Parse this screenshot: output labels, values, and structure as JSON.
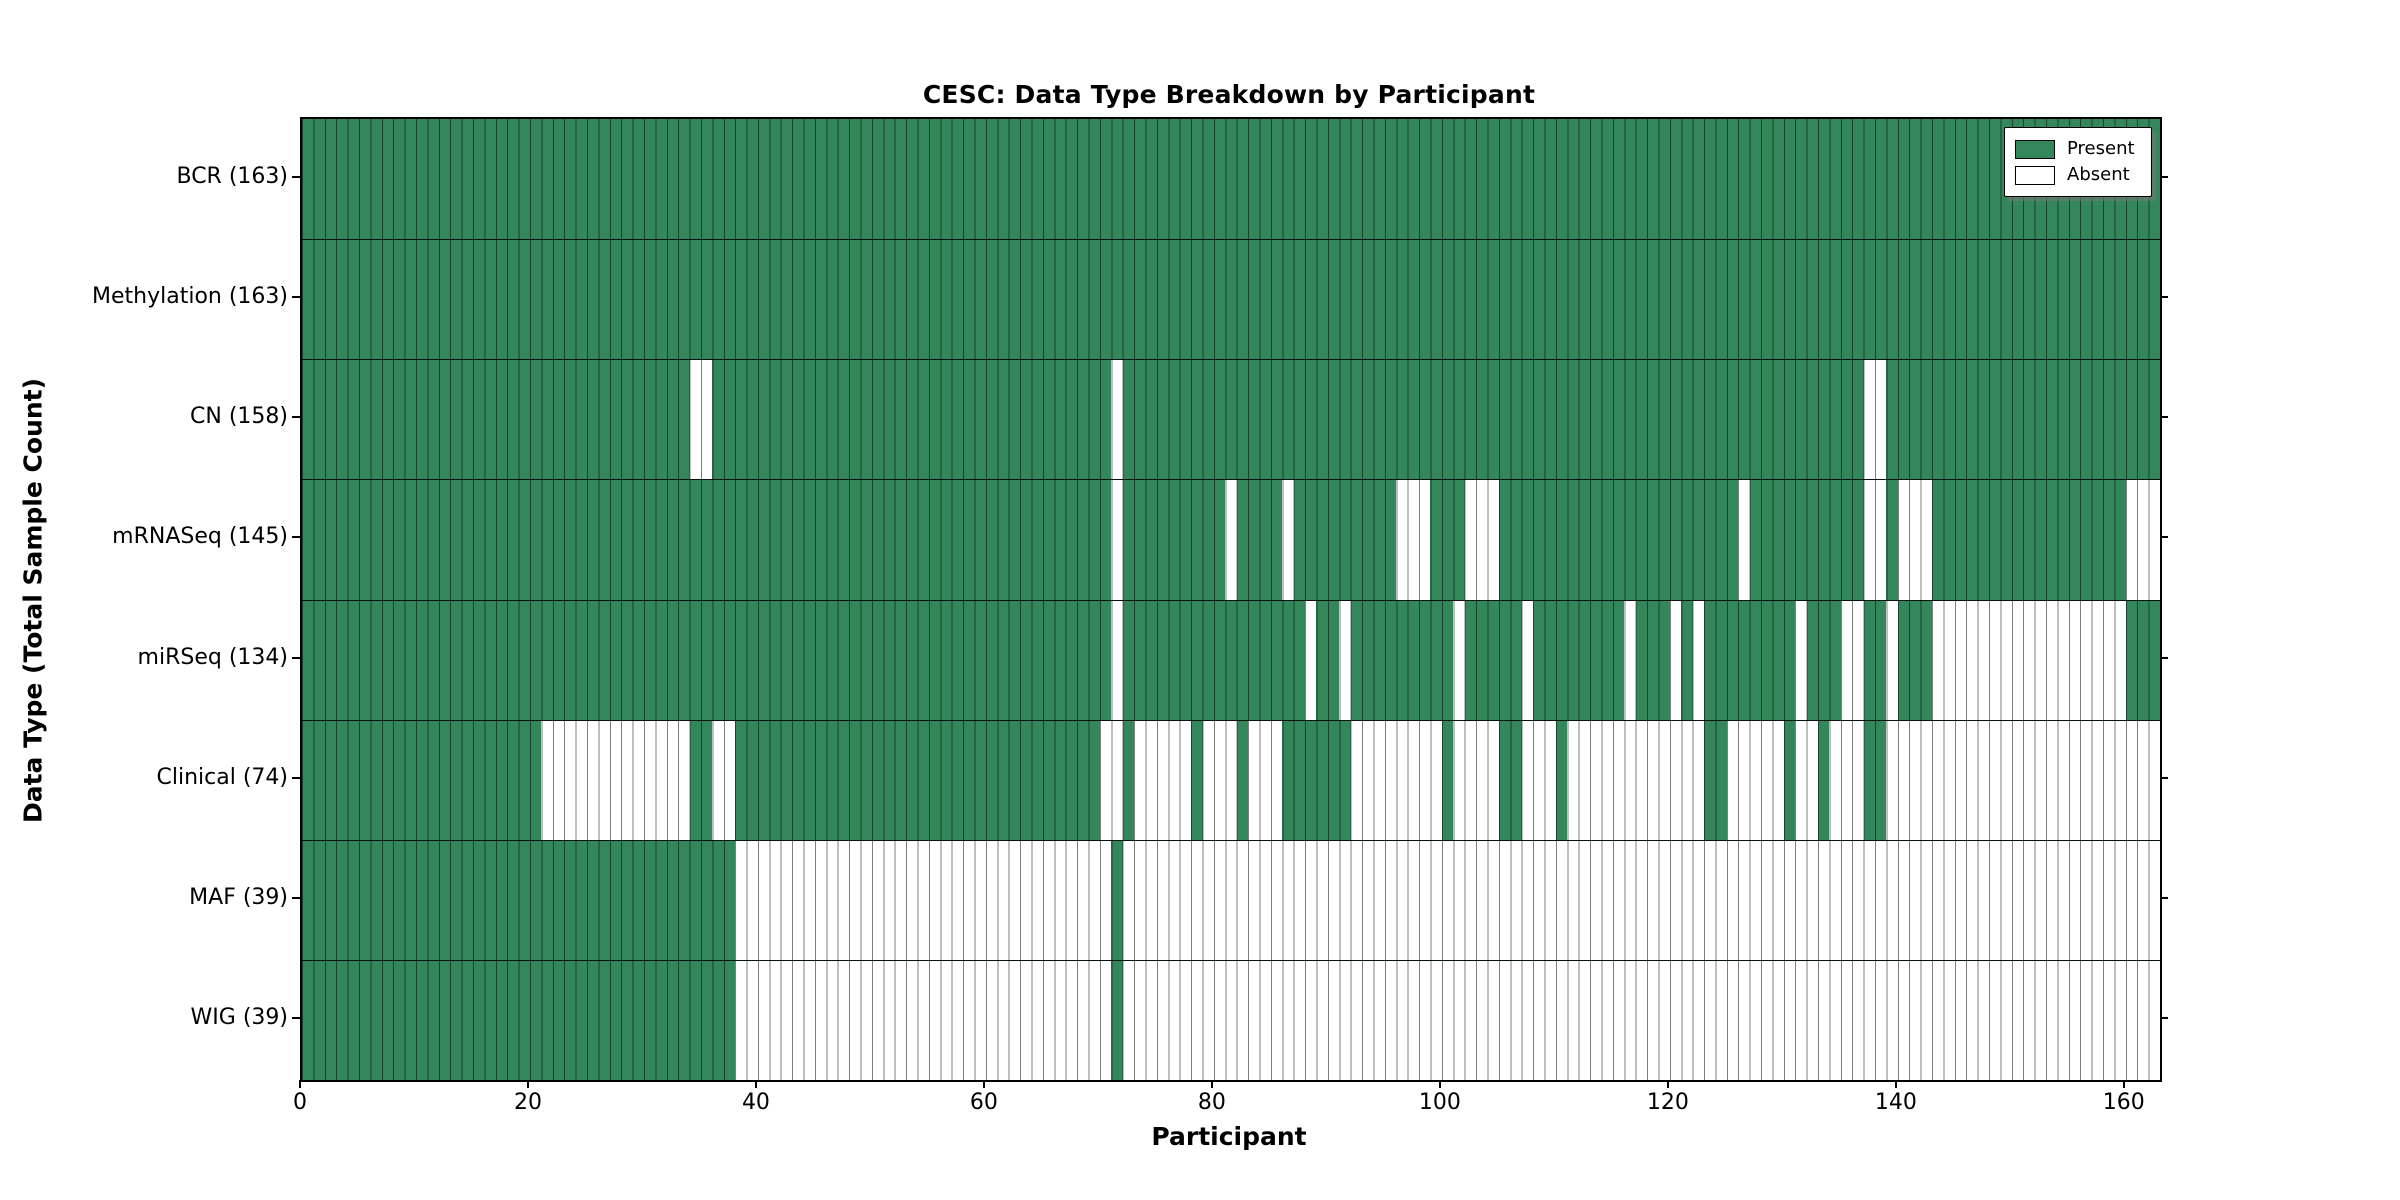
{
  "title": "CESC: Data Type Breakdown by Participant",
  "x_axis": {
    "label": "Participant",
    "ticks": [
      0,
      20,
      40,
      60,
      80,
      100,
      120,
      140,
      160
    ]
  },
  "y_axis": {
    "label": "Data Type (Total Sample Count)"
  },
  "legend": {
    "present_label": "Present",
    "absent_label": "Absent"
  },
  "colors": {
    "present": "#33875a",
    "absent": "#ffffff",
    "axis": "#000000"
  },
  "chart_data": {
    "type": "heatmap",
    "title": "CESC: Data Type Breakdown by Participant",
    "xlabel": "Participant",
    "ylabel": "Data Type (Total Sample Count)",
    "x_range": [
      0,
      163
    ],
    "n_participants": 163,
    "legend_entries": [
      "Present",
      "Absent"
    ],
    "legend_position": "upper right",
    "rows": [
      {
        "label": "BCR",
        "present_count": 163,
        "display": "BCR (163)",
        "absent_ranges": []
      },
      {
        "label": "Methylation",
        "present_count": 163,
        "display": "Methylation (163)",
        "absent_ranges": []
      },
      {
        "label": "CN",
        "present_count": 158,
        "display": "CN (158)",
        "absent_ranges": [
          [
            34,
            35
          ],
          [
            71,
            71
          ],
          [
            137,
            138
          ]
        ]
      },
      {
        "label": "mRNASeq",
        "present_count": 145,
        "display": "mRNASeq (145)",
        "absent_ranges": [
          [
            71,
            71
          ],
          [
            81,
            81
          ],
          [
            86,
            86
          ],
          [
            96,
            98
          ],
          [
            102,
            104
          ],
          [
            126,
            126
          ],
          [
            137,
            138
          ],
          [
            140,
            142
          ],
          [
            160,
            162
          ]
        ]
      },
      {
        "label": "miRSeq",
        "present_count": 134,
        "display": "miRSeq (134)",
        "absent_ranges": [
          [
            71,
            71
          ],
          [
            88,
            88
          ],
          [
            91,
            91
          ],
          [
            101,
            101
          ],
          [
            107,
            107
          ],
          [
            116,
            116
          ],
          [
            120,
            120
          ],
          [
            122,
            122
          ],
          [
            131,
            131
          ],
          [
            135,
            136
          ],
          [
            139,
            139
          ],
          [
            143,
            159
          ]
        ]
      },
      {
        "label": "Clinical",
        "present_count": 74,
        "display": "Clinical (74)",
        "absent_ranges": [
          [
            21,
            33
          ],
          [
            36,
            37
          ],
          [
            70,
            71
          ],
          [
            73,
            77
          ],
          [
            79,
            81
          ],
          [
            83,
            85
          ],
          [
            92,
            99
          ],
          [
            101,
            104
          ],
          [
            107,
            109
          ],
          [
            111,
            122
          ],
          [
            125,
            129
          ],
          [
            131,
            132
          ],
          [
            134,
            136
          ],
          [
            139,
            162
          ]
        ]
      },
      {
        "label": "MAF",
        "present_count": 39,
        "display": "MAF (39)",
        "absent_ranges": [
          [
            38,
            70
          ],
          [
            72,
            162
          ]
        ]
      },
      {
        "label": "WIG",
        "present_count": 39,
        "display": "WIG (39)",
        "absent_ranges": [
          [
            38,
            70
          ],
          [
            72,
            162
          ]
        ]
      }
    ]
  }
}
